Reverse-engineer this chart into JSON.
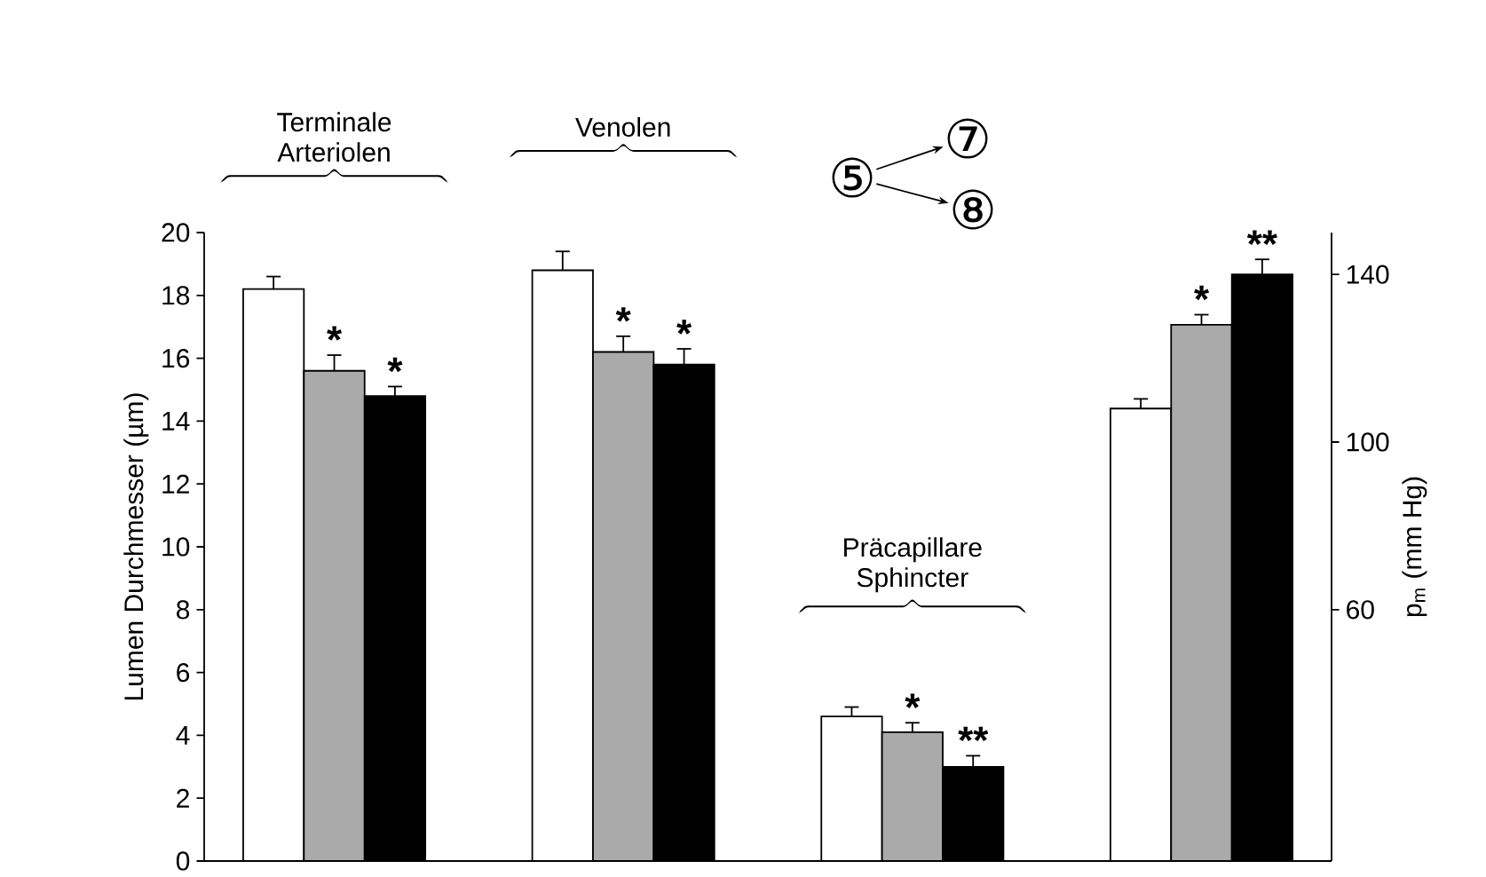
{
  "chart_data": {
    "type": "bar",
    "categories": [
      "Terminale Arteriolen",
      "Venolen",
      "Präcapillare Sphincter",
      null
    ],
    "ylabel": "Lumen Durchmesser (µm)",
    "y2label": "p$_{m}$ (mm Hg)",
    "ylim": [
      0,
      20
    ],
    "yticks": [
      0,
      2,
      4,
      6,
      8,
      10,
      12,
      14,
      16,
      18,
      20
    ],
    "y2lim": [
      0,
      150
    ],
    "y2ticks": [
      60,
      100,
      140
    ],
    "annotations": [
      "⑤",
      "⑦",
      "⑧"
    ],
    "series": [
      {
        "color": "#ffffff",
        "values": [
          18.2,
          18.8,
          4.6,
          null
        ],
        "errors": [
          0.4,
          0.6,
          0.3,
          null
        ]
      },
      {
        "color": "#aaaaaa",
        "values": [
          15.6,
          16.2,
          4.1,
          null
        ],
        "errors": [
          0.5,
          0.5,
          0.3,
          null
        ],
        "value_labels": [
          "*",
          "*",
          "*",
          null
        ]
      },
      {
        "color": "#000000",
        "values": [
          14.8,
          15.8,
          3.0,
          null
        ],
        "errors": [
          0.3,
          0.5,
          0.35,
          null
        ],
        "value_labels": [
          "*",
          "*",
          "**",
          null
        ]
      },
      {
        "axis": "y2",
        "color": "#ffffff",
        "values": [
          null,
          null,
          null,
          108
        ],
        "errors": [
          null,
          null,
          null,
          2.3
        ]
      },
      {
        "axis": "y2",
        "color": "#aaaaaa",
        "values": [
          null,
          null,
          null,
          128
        ],
        "errors": [
          null,
          null,
          null,
          2.4
        ],
        "value_labels": [
          null,
          null,
          null,
          "*"
        ]
      },
      {
        "axis": "y2",
        "color": "#000000",
        "values": [
          null,
          null,
          null,
          140
        ],
        "errors": [
          null,
          null,
          null,
          3.6
        ],
        "value_labels": [
          null,
          null,
          null,
          "**"
        ]
      }
    ]
  }
}
